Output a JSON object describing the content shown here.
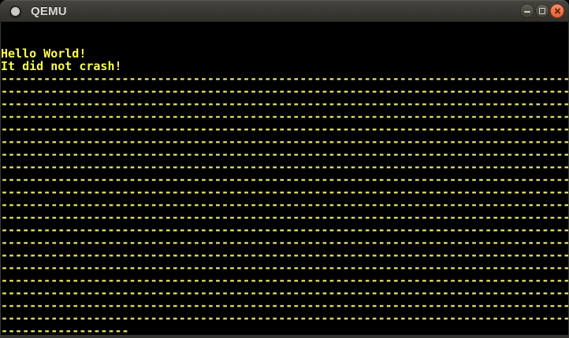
{
  "window": {
    "title": "QEMU",
    "icons": {
      "app": "circle-dot",
      "minimize": "minus",
      "maximize": "square-outline",
      "close": "cross"
    }
  },
  "colors": {
    "titlebar_top": "#484540",
    "titlebar_bottom": "#322f2b",
    "close_button": "#e66234",
    "button_gray": "#4e4b44",
    "text_yellow": "#fbfb54",
    "dash_yellow": "#eeee78",
    "screen_background": "#000000"
  },
  "screen": {
    "columns": 80,
    "rows": 25,
    "lines": [
      {
        "text": "",
        "color": "#fbfb54",
        "repeat": 2
      },
      {
        "text": "Hello World!",
        "color": "#fbfb54"
      },
      {
        "text": "It did not crash!",
        "color": "#fbfb54"
      },
      {
        "text": "--------------------------------------------------------------------------------",
        "color": "#eeee78",
        "repeat": 20
      },
      {
        "text": "------------------",
        "color": "#eeee78"
      }
    ]
  }
}
